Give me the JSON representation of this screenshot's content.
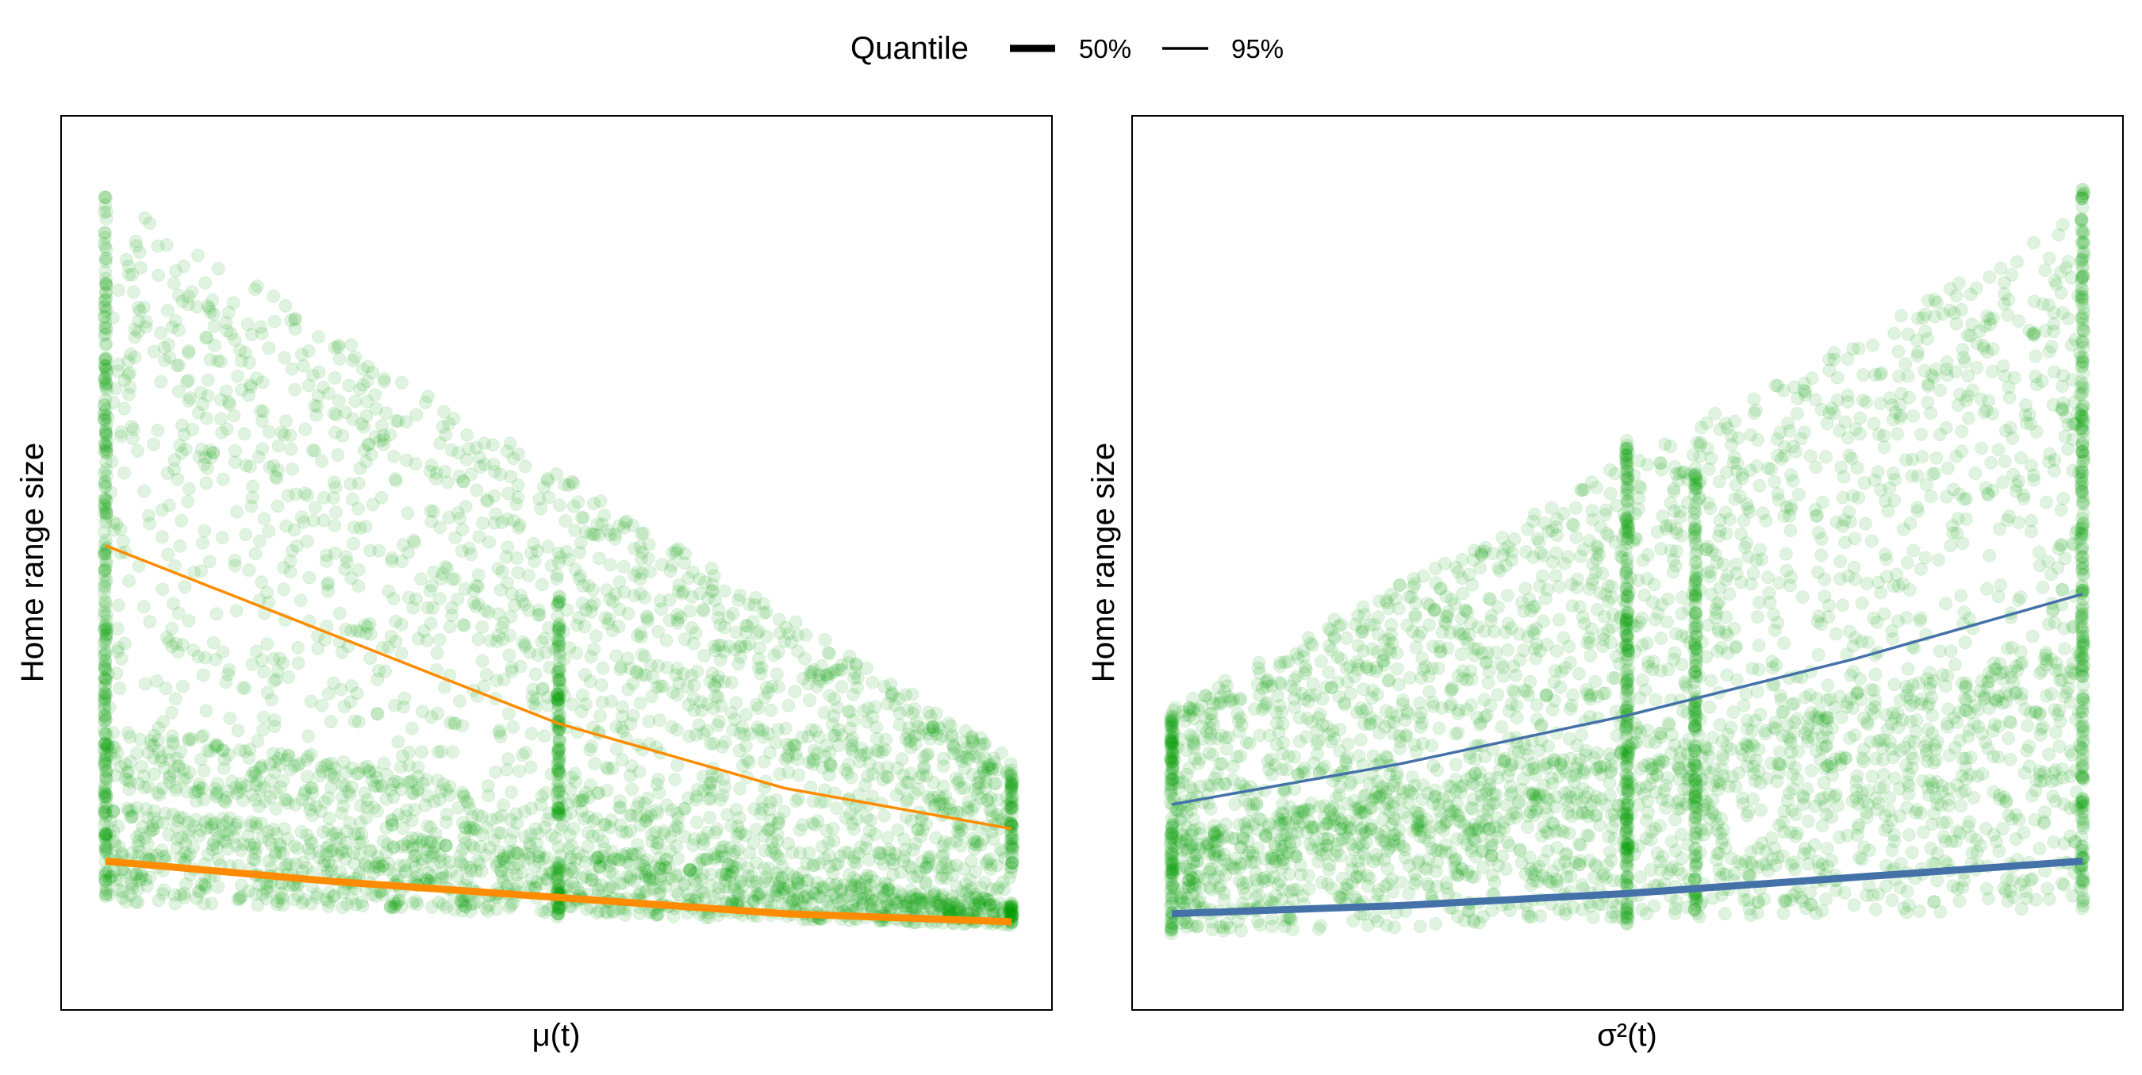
{
  "legend": {
    "title": "Quantile",
    "items": [
      {
        "label": "50%",
        "linewidth": "thick"
      },
      {
        "label": "95%",
        "linewidth": "thin"
      }
    ]
  },
  "chart_data": [
    {
      "type": "scatter",
      "title": "",
      "xlabel": "μ(t)",
      "ylabel": "Home range size",
      "x_ticks_shown": false,
      "y_ticks_shown": false,
      "xlim": [
        0,
        1
      ],
      "ylim": [
        0,
        1
      ],
      "grid": false,
      "point_color": "#00A000",
      "point_alpha": 0.12,
      "fit_color": "#FF8C00",
      "points_note": "dense cloud; structure encoded by clusters below",
      "point_clusters": [
        {
          "kind": "cloud",
          "x": [
            0.0,
            1.0
          ],
          "y_top": [
            0.96,
            0.26
          ],
          "y_bottom": [
            0.3,
            0.12
          ],
          "n": 1500
        },
        {
          "kind": "band",
          "x": [
            0.0,
            1.0
          ],
          "y_top": [
            0.3,
            0.12
          ],
          "y_bottom": [
            0.22,
            0.06
          ],
          "n": 600
        },
        {
          "kind": "band",
          "x": [
            0.0,
            1.0
          ],
          "y_top": [
            0.2,
            0.08
          ],
          "y_bottom": [
            0.08,
            0.05
          ],
          "n": 1100
        },
        {
          "kind": "column",
          "x": 0.0,
          "y": [
            0.08,
            0.96
          ],
          "n": 260
        },
        {
          "kind": "column",
          "x": 0.5,
          "y": [
            0.18,
            0.46
          ],
          "n": 110
        },
        {
          "kind": "column",
          "x": 0.5,
          "y": [
            0.06,
            0.13
          ],
          "n": 40
        },
        {
          "kind": "column",
          "x": 1.0,
          "y": [
            0.12,
            0.25
          ],
          "n": 60
        },
        {
          "kind": "column",
          "x": 1.0,
          "y": [
            0.05,
            0.08
          ],
          "n": 30
        }
      ],
      "series": [
        {
          "quantile": "50%",
          "x": [
            0.0,
            0.25,
            0.5,
            0.75,
            1.0
          ],
          "y": [
            0.13,
            0.105,
            0.085,
            0.065,
            0.055
          ]
        },
        {
          "quantile": "95%",
          "x": [
            0.0,
            0.25,
            0.5,
            0.75,
            1.0
          ],
          "y": [
            0.52,
            0.41,
            0.3,
            0.22,
            0.17
          ]
        }
      ]
    },
    {
      "type": "scatter",
      "title": "",
      "xlabel": "σ²(t)",
      "ylabel": "Home range size",
      "x_ticks_shown": false,
      "y_ticks_shown": false,
      "xlim": [
        0,
        1
      ],
      "ylim": [
        0,
        1
      ],
      "grid": false,
      "point_color": "#00A000",
      "point_alpha": 0.12,
      "fit_color": "#4472A8",
      "points_note": "dense cloud; structure encoded by clusters below",
      "point_clusters": [
        {
          "kind": "cloud",
          "x": [
            0.0,
            1.0
          ],
          "y_top": [
            0.32,
            0.93
          ],
          "y_bottom": [
            0.1,
            0.3
          ],
          "n": 1700
        },
        {
          "kind": "cloud",
          "x": [
            0.0,
            1.0
          ],
          "y_top": [
            0.16,
            0.4
          ],
          "y_bottom": [
            0.04,
            0.07
          ],
          "n": 1500
        },
        {
          "kind": "column",
          "x": 0.0,
          "y": [
            0.04,
            0.31
          ],
          "n": 120
        },
        {
          "kind": "column",
          "x": 0.5,
          "y": [
            0.05,
            0.65
          ],
          "n": 220
        },
        {
          "kind": "column",
          "x": 0.575,
          "y": [
            0.06,
            0.63
          ],
          "n": 170
        },
        {
          "kind": "column",
          "x": 1.0,
          "y": [
            0.07,
            0.96
          ],
          "n": 260
        }
      ],
      "series": [
        {
          "quantile": "50%",
          "x": [
            0.0,
            0.25,
            0.5,
            0.75,
            1.0
          ],
          "y": [
            0.065,
            0.075,
            0.09,
            0.11,
            0.13
          ]
        },
        {
          "quantile": "95%",
          "x": [
            0.0,
            0.25,
            0.5,
            0.75,
            1.0
          ],
          "y": [
            0.2,
            0.25,
            0.31,
            0.38,
            0.46
          ]
        }
      ]
    }
  ]
}
